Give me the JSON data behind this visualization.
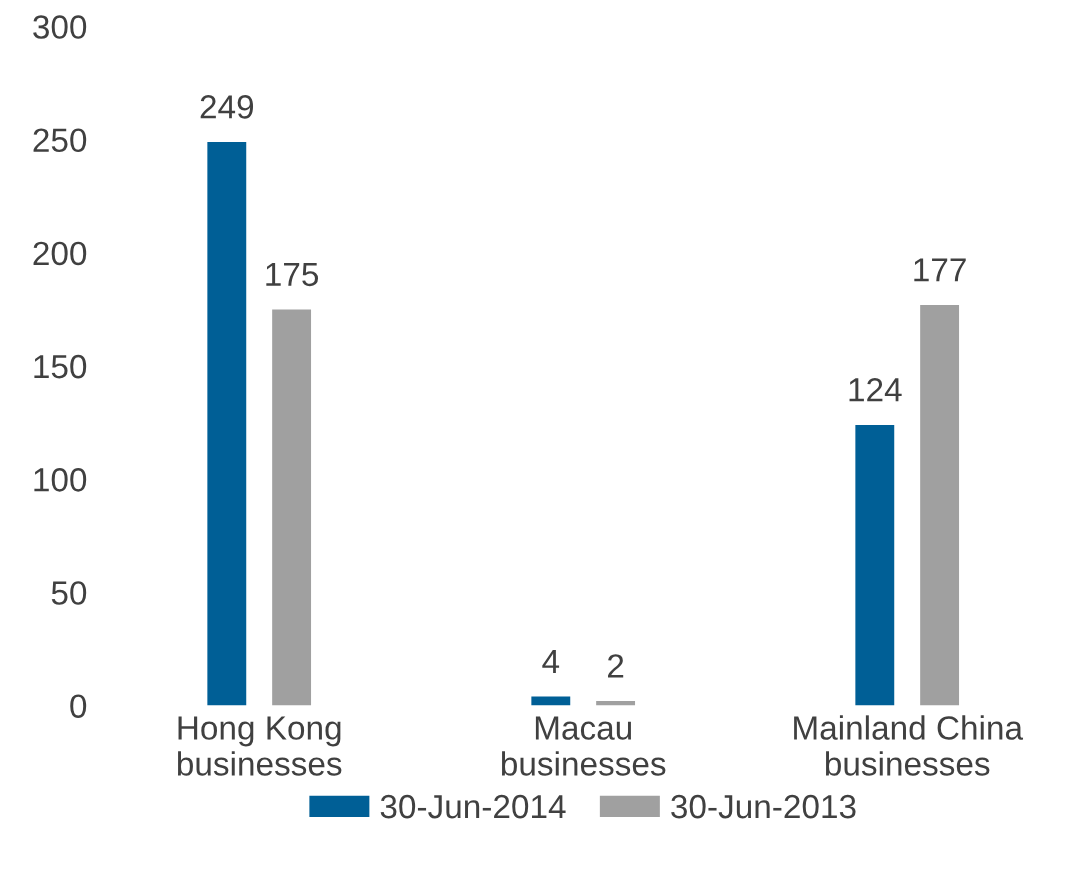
{
  "chart_data": {
    "type": "bar",
    "categories": [
      "Hong Kong\nbusinesses",
      "Macau\nbusinesses",
      "Mainland China\nbusinesses"
    ],
    "series": [
      {
        "name": "30-Jun-2014",
        "color": "#005f96",
        "values": [
          249,
          4,
          124
        ]
      },
      {
        "name": "30-Jun-2013",
        "color": "#a0a0a0",
        "values": [
          175,
          2,
          177
        ]
      }
    ],
    "ylim": [
      0,
      300
    ],
    "yticks": [
      0,
      50,
      100,
      150,
      200,
      250,
      300
    ],
    "data_labels": true,
    "grid": false,
    "legend": "bottom"
  }
}
